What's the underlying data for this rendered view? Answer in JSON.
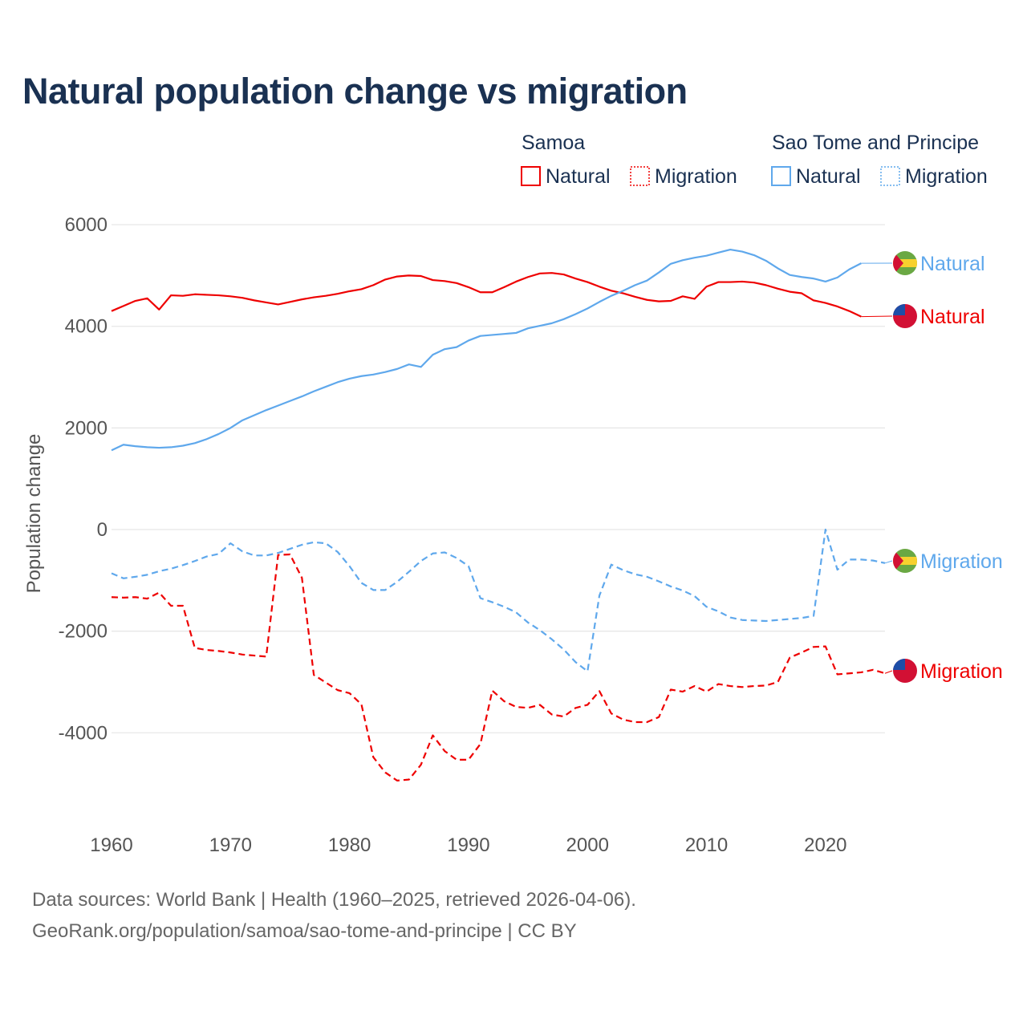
{
  "title": "Natural population change vs migration",
  "legend": {
    "groups": [
      {
        "name": "Samoa",
        "color": "#ee0000",
        "items": [
          "Natural",
          "Migration"
        ]
      },
      {
        "name": "Sao Tome and Principe",
        "color": "#5fa8ec",
        "items": [
          "Natural",
          "Migration"
        ]
      }
    ]
  },
  "footer": {
    "line1": "Data sources: World Bank | Health (1960–2025, retrieved 2026-04-06).",
    "line2": "GeoRank.org/population/samoa/sao-tome-and-principe | CC BY"
  },
  "chart_data": {
    "type": "line",
    "title": "Natural population change vs migration",
    "xlabel": "",
    "ylabel": "Population change",
    "xlim": [
      1960,
      2025
    ],
    "ylim": [
      -5500,
      6000
    ],
    "xticks": [
      1960,
      1970,
      1980,
      1990,
      2000,
      2010,
      2020
    ],
    "yticks": [
      6000,
      4000,
      2000,
      0,
      -2000,
      -4000
    ],
    "grid": true,
    "legend_position": "top-right",
    "series": [
      {
        "name": "Samoa Natural",
        "label": "Natural",
        "country": "Samoa",
        "color": "#ee0000",
        "dash": false,
        "start": 1960,
        "values": [
          4300,
          4400,
          4500,
          4550,
          4330,
          4610,
          4600,
          4630,
          4620,
          4610,
          4590,
          4560,
          4510,
          4470,
          4430,
          4480,
          4530,
          4570,
          4600,
          4640,
          4690,
          4730,
          4810,
          4920,
          4980,
          5000,
          4990,
          4910,
          4890,
          4850,
          4770,
          4670,
          4670,
          4770,
          4880,
          4970,
          5040,
          5050,
          5020,
          4940,
          4870,
          4780,
          4700,
          4650,
          4580,
          4520,
          4490,
          4500,
          4590,
          4540,
          4780,
          4870,
          4870,
          4880,
          4860,
          4810,
          4740,
          4680,
          4650,
          4510,
          4460,
          4390,
          4300,
          4190
        ]
      },
      {
        "name": "Samoa Migration",
        "label": "Migration",
        "country": "Samoa",
        "color": "#ee0000",
        "dash": true,
        "start": 1960,
        "values": [
          -1330,
          -1340,
          -1330,
          -1360,
          -1240,
          -1500,
          -1500,
          -2330,
          -2370,
          -2390,
          -2420,
          -2460,
          -2480,
          -2500,
          -500,
          -490,
          -950,
          -2860,
          -3010,
          -3160,
          -3220,
          -3440,
          -4480,
          -4780,
          -4940,
          -4920,
          -4630,
          -4050,
          -4360,
          -4530,
          -4530,
          -4220,
          -3170,
          -3380,
          -3490,
          -3510,
          -3450,
          -3640,
          -3680,
          -3510,
          -3450,
          -3180,
          -3620,
          -3740,
          -3790,
          -3790,
          -3690,
          -3150,
          -3190,
          -3080,
          -3190,
          -3040,
          -3080,
          -3100,
          -3080,
          -3070,
          -3000,
          -2520,
          -2420,
          -2310,
          -2300,
          -2850,
          -2830,
          -2810,
          -2760,
          -2830
        ]
      },
      {
        "name": "Sao Tome and Principe Natural",
        "label": "Natural",
        "country": "Sao Tome and Principe",
        "color": "#5fa8ec",
        "dash": false,
        "start": 1960,
        "values": [
          1560,
          1670,
          1640,
          1620,
          1610,
          1620,
          1650,
          1700,
          1780,
          1880,
          2000,
          2150,
          2250,
          2350,
          2440,
          2530,
          2620,
          2720,
          2810,
          2900,
          2970,
          3020,
          3050,
          3100,
          3160,
          3250,
          3200,
          3440,
          3550,
          3590,
          3720,
          3810,
          3830,
          3850,
          3870,
          3960,
          4010,
          4060,
          4140,
          4240,
          4350,
          4480,
          4600,
          4700,
          4810,
          4900,
          5060,
          5230,
          5300,
          5350,
          5390,
          5450,
          5510,
          5470,
          5400,
          5290,
          5140,
          5010,
          4970,
          4940,
          4880,
          4960,
          5120,
          5240
        ]
      },
      {
        "name": "Sao Tome and Principe Migration",
        "label": "Migration",
        "country": "Sao Tome and Principe",
        "color": "#5fa8ec",
        "dash": true,
        "start": 1960,
        "values": [
          -860,
          -960,
          -930,
          -890,
          -820,
          -770,
          -700,
          -620,
          -530,
          -480,
          -270,
          -430,
          -510,
          -510,
          -460,
          -380,
          -300,
          -250,
          -270,
          -440,
          -720,
          -1050,
          -1190,
          -1190,
          -1030,
          -830,
          -620,
          -470,
          -450,
          -560,
          -720,
          -1350,
          -1430,
          -1520,
          -1630,
          -1830,
          -1980,
          -2160,
          -2360,
          -2610,
          -2790,
          -1300,
          -690,
          -800,
          -880,
          -930,
          -1020,
          -1120,
          -1200,
          -1310,
          -1520,
          -1610,
          -1730,
          -1780,
          -1790,
          -1800,
          -1780,
          -1760,
          -1740,
          -1700,
          0,
          -790,
          -590,
          -590,
          -610,
          -660
        ]
      }
    ]
  }
}
